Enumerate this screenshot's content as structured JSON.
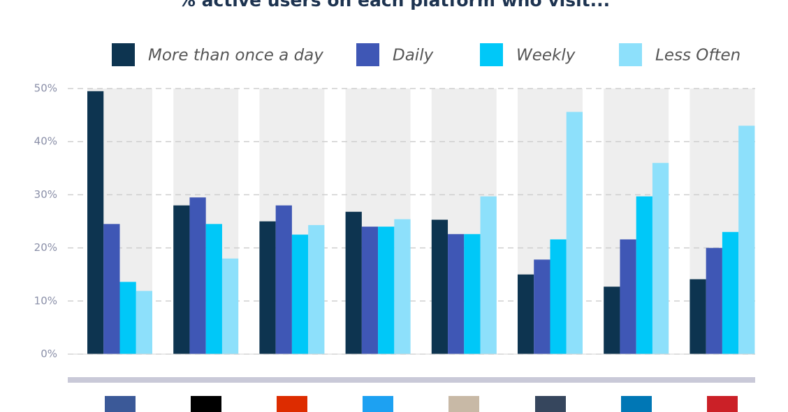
{
  "chart_data": {
    "type": "bar",
    "title": "% active users on each platform who visit...",
    "categories": [
      null,
      null,
      null,
      null,
      null,
      null,
      null,
      null
    ],
    "series": [
      {
        "name": "More than once a day",
        "color": "#0d3450",
        "values": [
          49.5,
          28,
          25,
          26.8,
          25.3,
          15,
          12.7,
          14.1
        ]
      },
      {
        "name": "Daily",
        "color": "#3f57b5",
        "values": [
          24.5,
          29.5,
          28,
          24,
          22.6,
          17.8,
          21.6,
          20
        ]
      },
      {
        "name": "Weekly",
        "color": "#00c8f8",
        "values": [
          13.6,
          24.5,
          22.5,
          24,
          22.6,
          21.6,
          29.7,
          23
        ]
      },
      {
        "name": "Less Often",
        "color": "#8de0fb",
        "values": [
          11.9,
          18,
          24.3,
          25.4,
          29.7,
          45.6,
          36,
          43
        ]
      }
    ],
    "ylim": [
      0,
      50
    ],
    "yticks": [
      {
        "value": 0,
        "label": "0%"
      },
      {
        "value": 10,
        "label": "10%"
      },
      {
        "value": 20,
        "label": "20%"
      },
      {
        "value": 30,
        "label": "30%"
      },
      {
        "value": 40,
        "label": "40%"
      },
      {
        "value": 50,
        "label": "50%"
      }
    ],
    "grid": true
  }
}
